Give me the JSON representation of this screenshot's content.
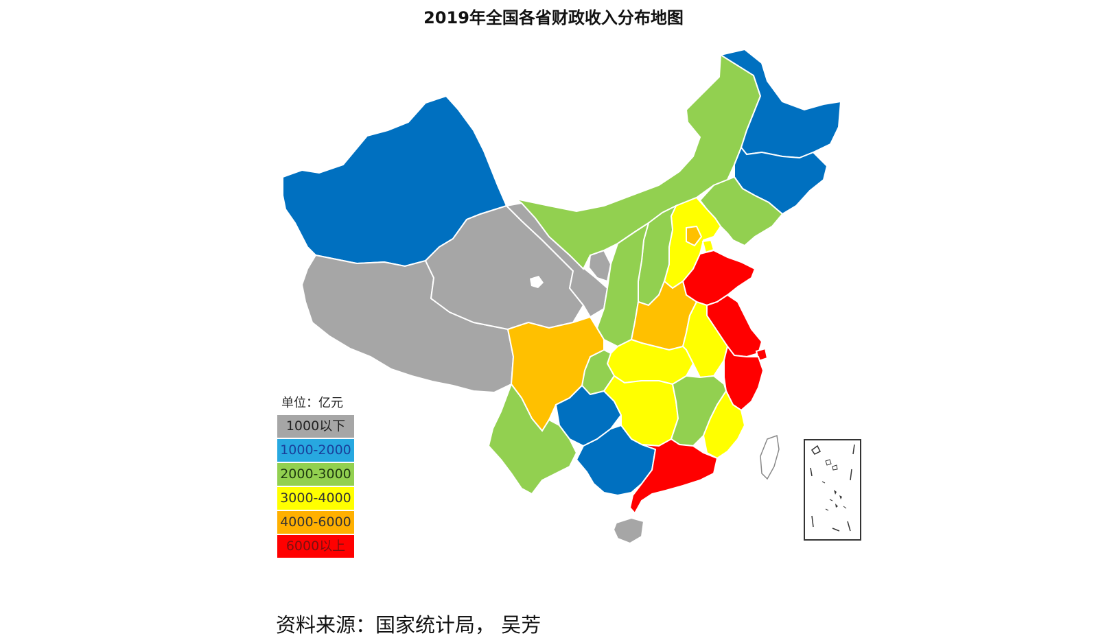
{
  "title": "2019年全国各省财政收入分布地图",
  "legend": {
    "unit": "单位：亿元",
    "items": [
      {
        "label": "1000以下",
        "color": "#a6a6a6",
        "text_color": "#222222"
      },
      {
        "label": "1000-2000",
        "color": "#27a8e0",
        "text_color": "#1a3f9a"
      },
      {
        "label": "2000-3000",
        "color": "#92d050",
        "text_color": "#1f3a10"
      },
      {
        "label": "3000-4000",
        "color": "#ffff00",
        "text_color": "#333333"
      },
      {
        "label": "4000-6000",
        "color": "#ffb000",
        "text_color": "#333333"
      },
      {
        "label": "6000以上",
        "color": "#ff0000",
        "text_color": "#7a1010"
      }
    ]
  },
  "colors": {
    "tier1": "#a6a6a6",
    "tier2": "#0070c0",
    "tier3": "#92d050",
    "tier4": "#ffff00",
    "tier5": "#ffc000",
    "tier6": "#ff0000",
    "border": "#ffffff"
  },
  "source": "资料来源：国家统计局， 吴芳"
}
